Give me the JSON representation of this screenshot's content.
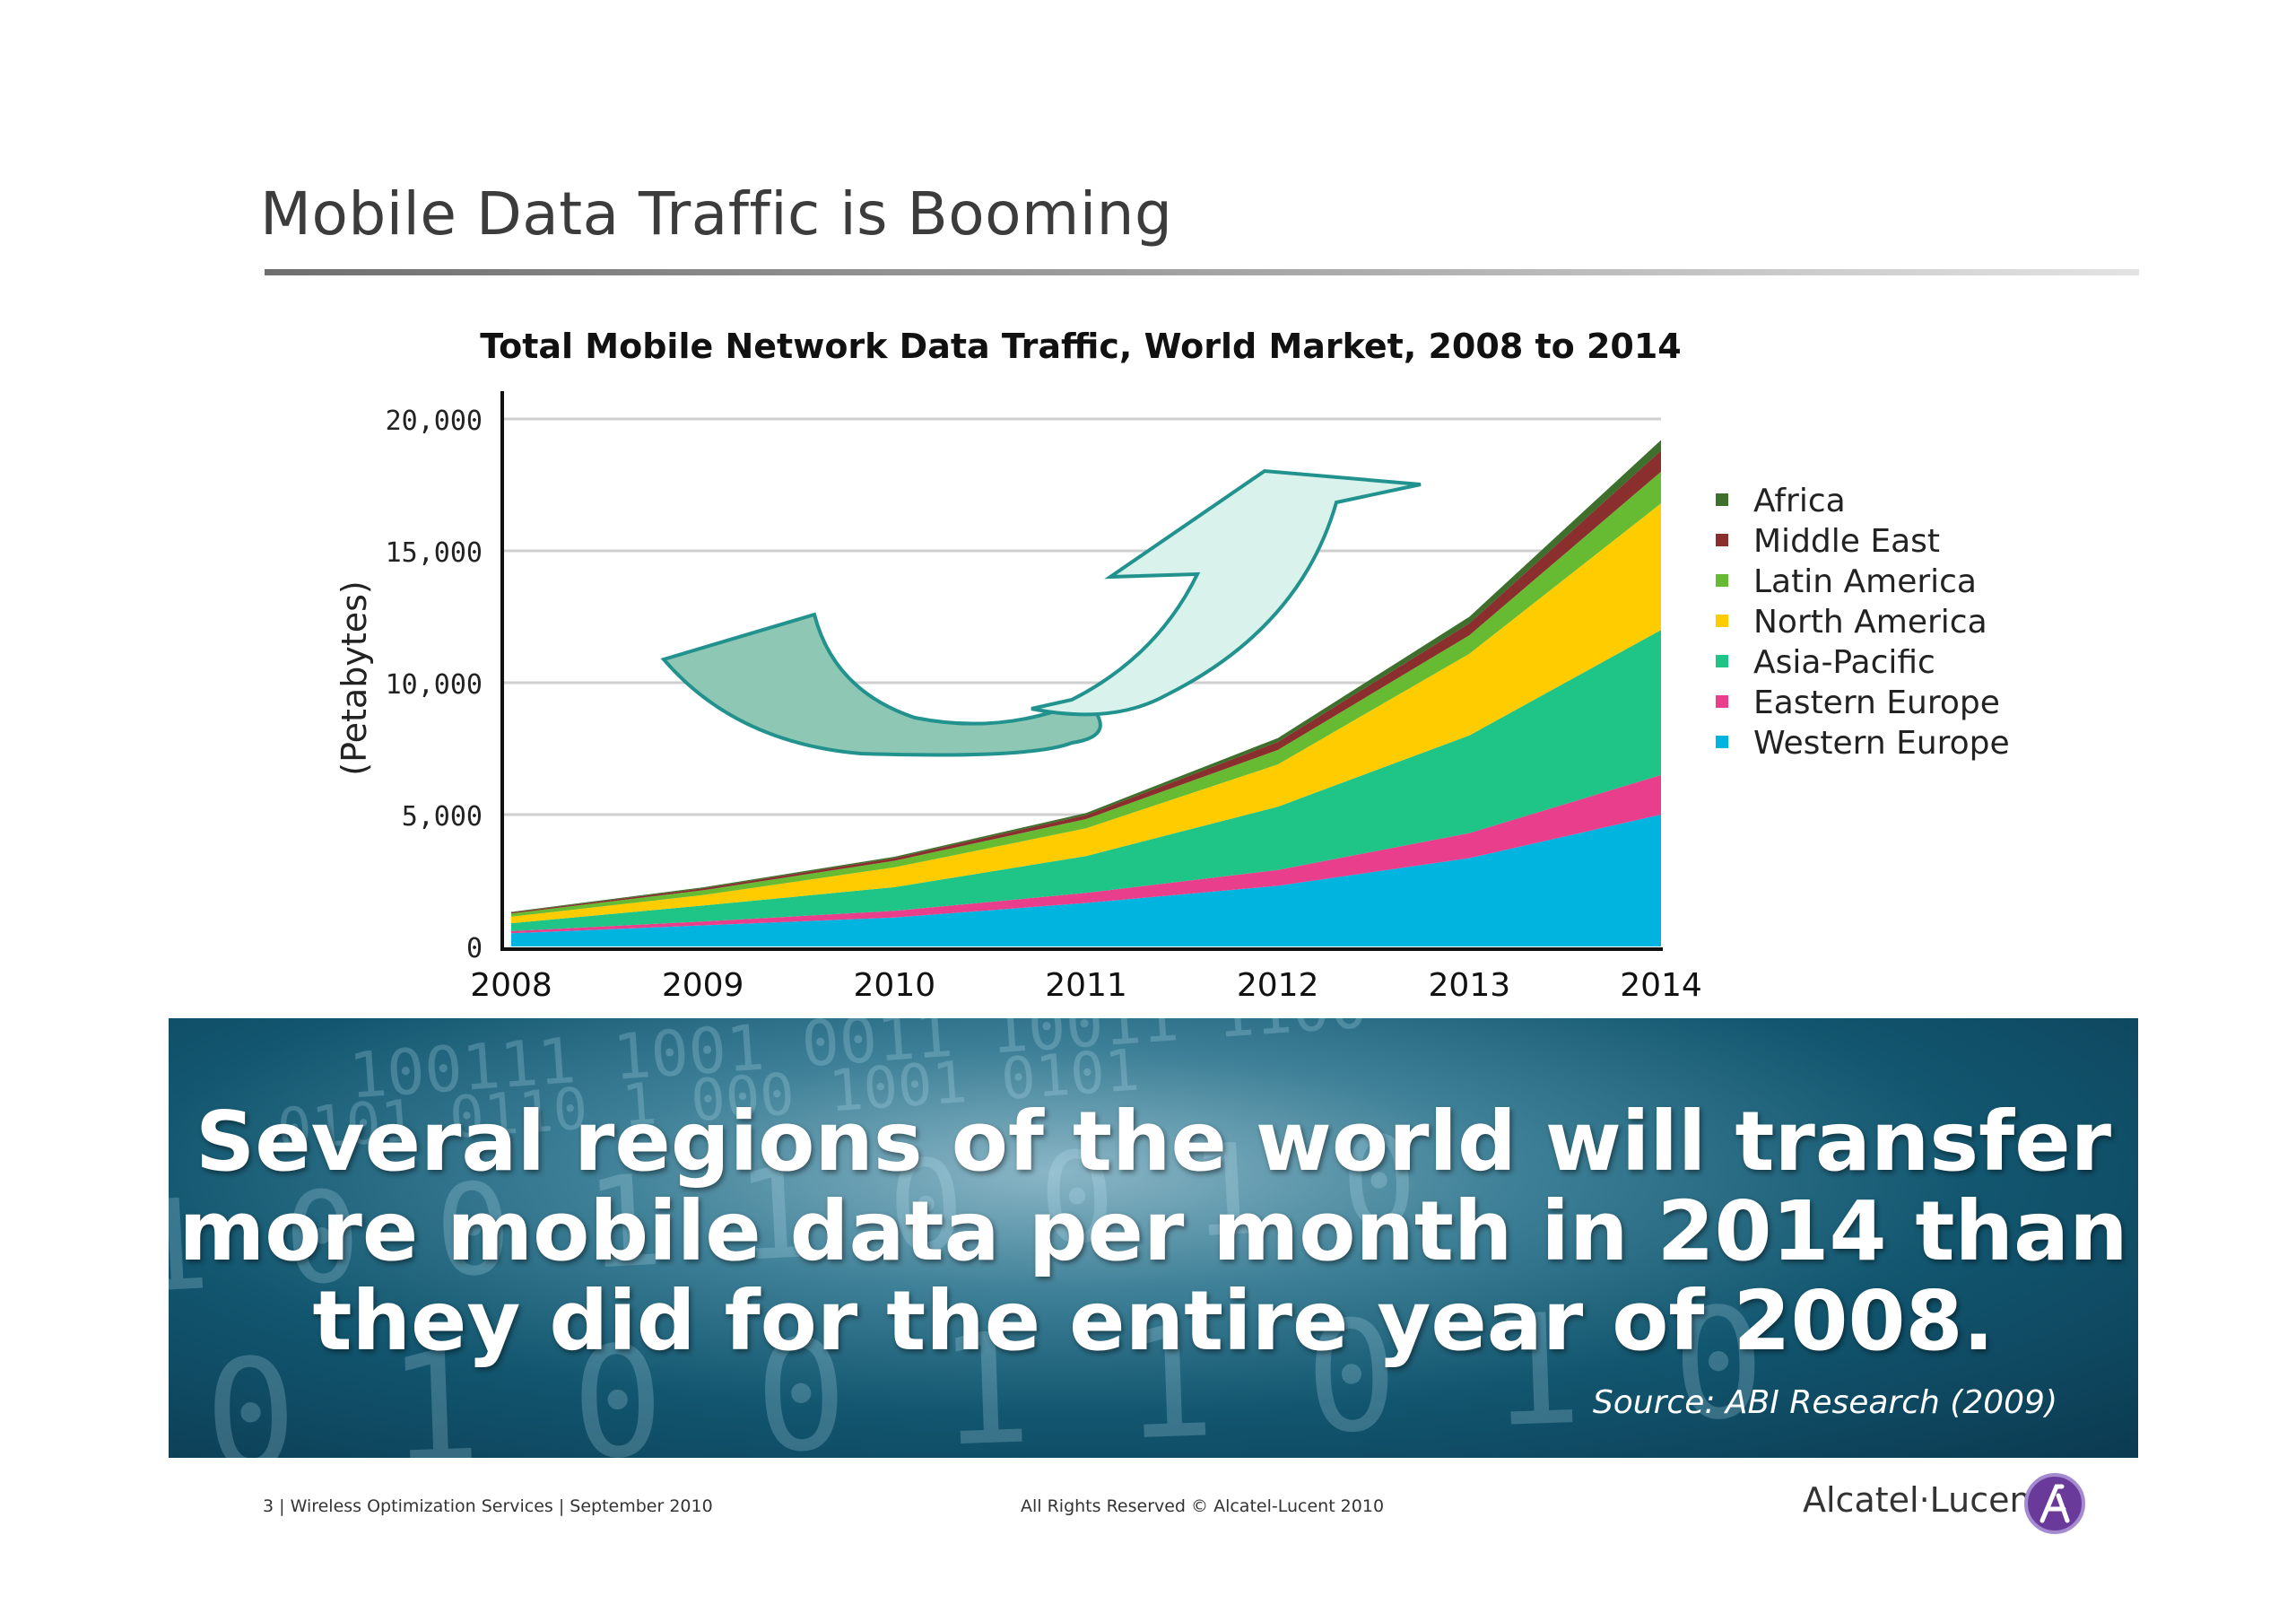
{
  "slide": {
    "title": "Mobile Data Traffic is Booming"
  },
  "chart_data": {
    "type": "area",
    "stacked": true,
    "title": "Total Mobile Network Data Traffic, World Market, 2008 to 2014",
    "xlabel": "",
    "ylabel": "(Petabytes)",
    "x": [
      "2008",
      "2009",
      "2010",
      "2011",
      "2012",
      "2013",
      "2014"
    ],
    "yticks": [
      "0",
      "5,000",
      "10,000",
      "15,000",
      "20,000"
    ],
    "ytick_values": [
      0,
      5000,
      10000,
      15000,
      20000
    ],
    "ylim": [
      0,
      20000
    ],
    "grid": true,
    "legend_position": "right",
    "series": [
      {
        "name": "Western Europe",
        "color": "#00b4e0",
        "values": [
          500,
          800,
          1100,
          1650,
          2300,
          3350,
          5000
        ]
      },
      {
        "name": "Eastern Europe",
        "color": "#e83e8c",
        "values": [
          80,
          150,
          250,
          380,
          600,
          950,
          1500
        ]
      },
      {
        "name": "Asia-Pacific",
        "color": "#1fc487",
        "values": [
          300,
          600,
          900,
          1400,
          2400,
          3700,
          5500
        ]
      },
      {
        "name": "North America",
        "color": "#ffcc00",
        "values": [
          250,
          400,
          750,
          1050,
          1600,
          3100,
          4800
        ]
      },
      {
        "name": "Latin America",
        "color": "#66bb33",
        "values": [
          120,
          180,
          250,
          350,
          550,
          700,
          1200
        ]
      },
      {
        "name": "Middle East",
        "color": "#8b2e2e",
        "values": [
          40,
          70,
          100,
          150,
          300,
          450,
          800
        ]
      },
      {
        "name": "Africa",
        "color": "#3f6f2d",
        "values": [
          20,
          40,
          50,
          80,
          150,
          250,
          400
        ]
      }
    ]
  },
  "banner": {
    "lines": [
      "Several regions of the world will transfer",
      "more mobile data per month in 2014 than",
      "they did for the entire year of 2008."
    ],
    "source": "Source: ABI Research (2009)"
  },
  "footer": {
    "left": "3 | Wireless Optimization Services | September 2010",
    "center": "All Rights Reserved © Alcatel-Lucent 2010",
    "brand": "Alcatel·Lucent"
  }
}
